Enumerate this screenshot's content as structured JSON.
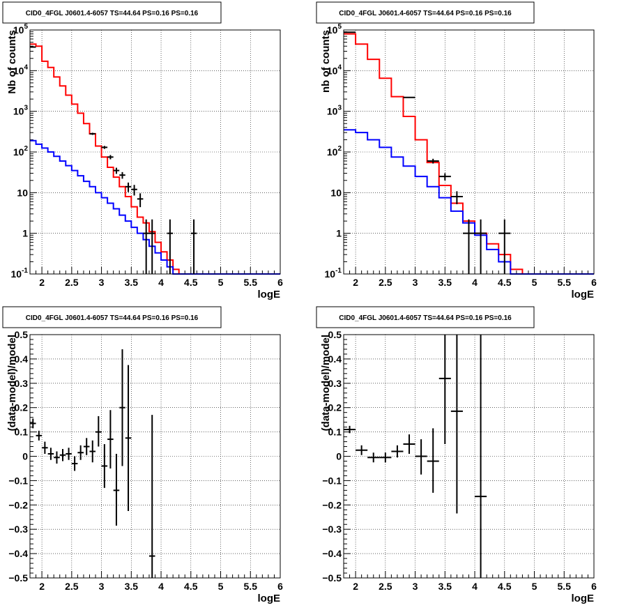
{
  "chart_data": [
    {
      "type": "line",
      "title": "CID0_4FGL J0601.4-6057 TS=44.64 PS=0.16 PS=0.16",
      "xlabel": "logE",
      "ylabel": "Nb of counts",
      "xlim": [
        1.8,
        6.0
      ],
      "ylim": [
        0.1,
        100000
      ],
      "yscale": "log",
      "grid": true,
      "xticks": [
        2,
        2.5,
        3,
        3.5,
        4,
        4.5,
        5,
        5.5,
        6
      ],
      "xtick_labels": [
        "2",
        "2.5",
        "3",
        "3.5",
        "4",
        "4.5",
        "5",
        "5.5",
        "6"
      ],
      "yticks": [
        0.1,
        1,
        10,
        100,
        1000,
        10000,
        100000
      ],
      "ytick_labels": [
        "10^-1",
        "1",
        "10",
        "10^2",
        "10^3",
        "10^4",
        "10^5"
      ],
      "bin_edges": [
        1.8,
        1.9,
        2.0,
        2.1,
        2.2,
        2.3,
        2.4,
        2.5,
        2.6,
        2.7,
        2.8,
        2.9,
        3.0,
        3.1,
        3.2,
        3.3,
        3.4,
        3.5,
        3.6,
        3.7,
        3.8,
        3.9,
        4.0,
        4.1,
        4.2,
        4.3,
        4.4,
        4.5,
        4.6,
        4.7,
        4.8,
        4.9,
        5.0,
        5.1,
        5.2,
        5.3,
        5.4,
        5.5,
        5.6,
        5.7,
        5.8,
        5.9,
        6.0
      ],
      "series": [
        {
          "kind": "step",
          "color": "#ff0000",
          "values": [
            45000,
            40000,
            17000,
            12000,
            7000,
            4200,
            2500,
            1500,
            900,
            500,
            280,
            140,
            75,
            42,
            24,
            14,
            8,
            4.5,
            2.5,
            1.8,
            1.1,
            0.6,
            0.35,
            0.22,
            0.13,
            0.1,
            0.1,
            0.1,
            0.1,
            0.1,
            0.1,
            0.1,
            0.1,
            0.1,
            0.1,
            0.1,
            0.1,
            0.1,
            0.1,
            0.1,
            0.1,
            0.1
          ]
        },
        {
          "kind": "step",
          "color": "#0000ff",
          "values": [
            190,
            155,
            125,
            100,
            78,
            60,
            46,
            35,
            26,
            19,
            14,
            10,
            7.5,
            5.5,
            4,
            2.8,
            2,
            1.4,
            1.0,
            0.7,
            0.48,
            0.33,
            0.22,
            0.15,
            0.1,
            0.1,
            0.1,
            0.1,
            0.1,
            0.1,
            0.1,
            0.1,
            0.1,
            0.1,
            0.1,
            0.1,
            0.1,
            0.1,
            0.1,
            0.1,
            0.1,
            0.1
          ]
        },
        {
          "kind": "errorbar",
          "color": "#000000",
          "points": [
            {
              "x": 1.85,
              "y": 38000,
              "lo": 37600,
              "hi": 38400
            },
            {
              "x": 2.85,
              "y": 280,
              "lo": 263,
              "hi": 297
            },
            {
              "x": 3.05,
              "y": 130,
              "lo": 119,
              "hi": 141
            },
            {
              "x": 3.15,
              "y": 75,
              "lo": 66,
              "hi": 84
            },
            {
              "x": 3.25,
              "y": 35,
              "lo": 29,
              "hi": 41
            },
            {
              "x": 3.35,
              "y": 27,
              "lo": 22,
              "hi": 32
            },
            {
              "x": 3.45,
              "y": 14,
              "lo": 10.3,
              "hi": 17.7
            },
            {
              "x": 3.55,
              "y": 12,
              "lo": 8.5,
              "hi": 15.5
            },
            {
              "x": 3.65,
              "y": 7,
              "lo": 4.4,
              "hi": 9.6
            },
            {
              "x": 3.75,
              "y": 1,
              "lo": 0.1,
              "hi": 2.2
            },
            {
              "x": 3.85,
              "y": 1,
              "lo": 0.1,
              "hi": 2.2
            },
            {
              "x": 4.15,
              "y": 1,
              "lo": 0.1,
              "hi": 2.2
            },
            {
              "x": 4.55,
              "y": 1,
              "lo": 0.1,
              "hi": 2.2
            }
          ],
          "xerr": 0.05
        }
      ]
    },
    {
      "type": "line",
      "title": "CID0_4FGL J0601.4-6057 TS=44.64 PS=0.16 PS=0.16",
      "xlabel": "logE",
      "ylabel": "nb of counts",
      "xlim": [
        1.8,
        6.0
      ],
      "ylim": [
        0.1,
        100000
      ],
      "yscale": "log",
      "grid": true,
      "xticks": [
        2,
        2.5,
        3,
        3.5,
        4,
        4.5,
        5,
        5.5,
        6
      ],
      "xtick_labels": [
        "2",
        "2.5",
        "3",
        "3.5",
        "4",
        "4.5",
        "5",
        "5.5",
        "6"
      ],
      "yticks": [
        0.1,
        1,
        10,
        100,
        1000,
        10000,
        100000
      ],
      "ytick_labels": [
        "10^-1",
        "1",
        "10",
        "10^2",
        "10^3",
        "10^4",
        "10^5"
      ],
      "bin_edges": [
        1.8,
        2.0,
        2.2,
        2.4,
        2.6,
        2.8,
        3.0,
        3.2,
        3.4,
        3.6,
        3.8,
        4.0,
        4.2,
        4.4,
        4.6,
        4.8,
        5.0,
        5.2,
        5.4,
        5.6,
        5.8,
        6.0
      ],
      "series": [
        {
          "kind": "step",
          "color": "#ff0000",
          "values": [
            80000,
            45000,
            19000,
            6500,
            2300,
            750,
            200,
            55,
            15,
            5.5,
            2.0,
            1.0,
            0.55,
            0.3,
            0.13,
            0.1,
            0.1,
            0.1,
            0.1,
            0.1,
            0.1
          ]
        },
        {
          "kind": "step",
          "color": "#0000ff",
          "values": [
            350,
            300,
            200,
            130,
            75,
            45,
            25,
            14,
            7.5,
            3.5,
            1.8,
            0.9,
            0.4,
            0.2,
            0.1,
            0.1,
            0.1,
            0.1,
            0.1,
            0.1,
            0.1
          ]
        },
        {
          "kind": "errorbar",
          "color": "#000000",
          "points": [
            {
              "x": 1.9,
              "y": 88000,
              "lo": 87700,
              "hi": 88300
            },
            {
              "x": 2.9,
              "y": 2200,
              "lo": 2150,
              "hi": 2250
            },
            {
              "x": 3.3,
              "y": 60,
              "lo": 52,
              "hi": 68
            },
            {
              "x": 3.5,
              "y": 25,
              "lo": 20,
              "hi": 30
            },
            {
              "x": 3.7,
              "y": 8,
              "lo": 5.2,
              "hi": 10.8
            },
            {
              "x": 3.9,
              "y": 1,
              "lo": 0.1,
              "hi": 2.2
            },
            {
              "x": 4.1,
              "y": 1,
              "lo": 0.1,
              "hi": 2.2
            },
            {
              "x": 4.5,
              "y": 1,
              "lo": 0.1,
              "hi": 2.2
            }
          ],
          "xerr": 0.1
        }
      ]
    },
    {
      "type": "scatter",
      "title": "CID0_4FGL J0601.4-6057 TS=44.64 PS=0.16 PS=0.16",
      "xlabel": "logE",
      "ylabel": "(data-model)/model",
      "xlim": [
        1.8,
        6.0
      ],
      "ylim": [
        -0.5,
        0.5
      ],
      "yscale": "linear",
      "grid": true,
      "xticks": [
        2,
        2.5,
        3,
        3.5,
        4,
        4.5,
        5,
        5.5,
        6
      ],
      "xtick_labels": [
        "2",
        "2.5",
        "3",
        "3.5",
        "4",
        "4.5",
        "5",
        "5.5",
        "6"
      ],
      "yticks": [
        -0.5,
        -0.4,
        -0.3,
        -0.2,
        -0.1,
        0,
        0.1,
        0.2,
        0.3,
        0.4,
        0.5
      ],
      "ytick_labels": [
        "−0.5",
        "−0.4",
        "−0.3",
        "−0.2",
        "−0.1",
        "0",
        "0.1",
        "0.2",
        "0.3",
        "0.4",
        "0.5"
      ],
      "series": [
        {
          "kind": "errorbar",
          "color": "#000000",
          "xerr": 0.05,
          "points": [
            {
              "x": 1.85,
              "y": 0.135,
              "lo": 0.115,
              "hi": 0.155
            },
            {
              "x": 1.95,
              "y": 0.085,
              "lo": 0.065,
              "hi": 0.105
            },
            {
              "x": 2.05,
              "y": 0.035,
              "lo": 0.01,
              "hi": 0.06
            },
            {
              "x": 2.15,
              "y": 0.01,
              "lo": -0.015,
              "hi": 0.035
            },
            {
              "x": 2.25,
              "y": -0.005,
              "lo": -0.03,
              "hi": 0.02
            },
            {
              "x": 2.35,
              "y": 0.005,
              "lo": -0.02,
              "hi": 0.03
            },
            {
              "x": 2.45,
              "y": 0.01,
              "lo": -0.015,
              "hi": 0.035
            },
            {
              "x": 2.55,
              "y": -0.03,
              "lo": -0.06,
              "hi": 0.0
            },
            {
              "x": 2.65,
              "y": 0.015,
              "lo": -0.015,
              "hi": 0.045
            },
            {
              "x": 2.75,
              "y": 0.04,
              "lo": 0.005,
              "hi": 0.075
            },
            {
              "x": 2.85,
              "y": 0.02,
              "lo": -0.025,
              "hi": 0.065
            },
            {
              "x": 2.95,
              "y": 0.1,
              "lo": 0.04,
              "hi": 0.165
            },
            {
              "x": 3.05,
              "y": -0.04,
              "lo": -0.13,
              "hi": 0.05
            },
            {
              "x": 3.15,
              "y": 0.07,
              "lo": -0.05,
              "hi": 0.19
            },
            {
              "x": 3.25,
              "y": -0.14,
              "lo": -0.285,
              "hi": 0.01
            },
            {
              "x": 3.35,
              "y": 0.2,
              "lo": -0.04,
              "hi": 0.44
            },
            {
              "x": 3.45,
              "y": 0.075,
              "lo": -0.225,
              "hi": 0.375
            },
            {
              "x": 3.85,
              "y": -0.41,
              "lo": -0.5,
              "hi": 0.17
            }
          ]
        }
      ]
    },
    {
      "type": "scatter",
      "title": "CID0_4FGL J0601.4-6057 TS=44.64 PS=0.16 PS=0.16",
      "xlabel": "logE",
      "ylabel": "(data-model)/model",
      "xlim": [
        1.8,
        6.0
      ],
      "ylim": [
        -0.5,
        0.5
      ],
      "yscale": "linear",
      "grid": true,
      "xticks": [
        2,
        2.5,
        3,
        3.5,
        4,
        4.5,
        5,
        5.5,
        6
      ],
      "xtick_labels": [
        "2",
        "2.5",
        "3",
        "3.5",
        "4",
        "4.5",
        "5",
        "5.5",
        "6"
      ],
      "yticks": [
        -0.5,
        -0.4,
        -0.3,
        -0.2,
        -0.1,
        0,
        0.1,
        0.2,
        0.3,
        0.4,
        0.5
      ],
      "ytick_labels": [
        "−0.5",
        "−0.4",
        "−0.3",
        "−0.2",
        "−0.1",
        "0",
        "0.1",
        "0.2",
        "0.3",
        "0.4",
        "0.5"
      ],
      "series": [
        {
          "kind": "errorbar",
          "color": "#000000",
          "xerr": 0.1,
          "points": [
            {
              "x": 1.9,
              "y": 0.11,
              "lo": 0.095,
              "hi": 0.125
            },
            {
              "x": 2.1,
              "y": 0.025,
              "lo": 0.005,
              "hi": 0.045
            },
            {
              "x": 2.3,
              "y": -0.005,
              "lo": -0.025,
              "hi": 0.015
            },
            {
              "x": 2.5,
              "y": -0.005,
              "lo": -0.025,
              "hi": 0.015
            },
            {
              "x": 2.7,
              "y": 0.02,
              "lo": -0.005,
              "hi": 0.045
            },
            {
              "x": 2.9,
              "y": 0.05,
              "lo": 0.01,
              "hi": 0.09
            },
            {
              "x": 3.1,
              "y": 0.0,
              "lo": -0.075,
              "hi": 0.07
            },
            {
              "x": 3.3,
              "y": -0.02,
              "lo": -0.15,
              "hi": 0.115
            },
            {
              "x": 3.5,
              "y": 0.32,
              "lo": 0.05,
              "hi": 0.5
            },
            {
              "x": 3.7,
              "y": 0.185,
              "lo": -0.235,
              "hi": 0.5
            },
            {
              "x": 4.1,
              "y": -0.165,
              "lo": -0.5,
              "hi": 0.5
            }
          ]
        }
      ]
    }
  ]
}
